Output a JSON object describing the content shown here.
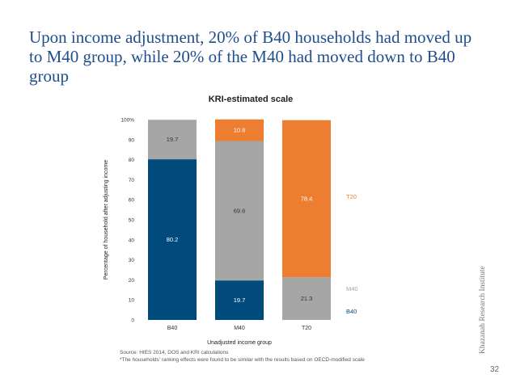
{
  "slide": {
    "title": "Upon income adjustment, 20% of B40 households had moved up to M40 group, while 20% of the M40 had moved down to B40 group",
    "source_line_1": "Source: HIES 2014, DOS and KRI calculations",
    "source_line_2": "*The households' ranking effects were found to be similar with the results based on OECD-modified scale",
    "brand": "Khazanah Research Institute",
    "page_number": "32"
  },
  "chart_data": {
    "type": "bar",
    "stacked": true,
    "title": "KRI-estimated scale",
    "xlabel": "Unadjusted income group",
    "ylabel": "Percentage of household after adjusting income",
    "categories": [
      "B40",
      "M40",
      "T20"
    ],
    "ylim": [
      0,
      100
    ],
    "yticks": [
      "0",
      "10",
      "20",
      "30",
      "40",
      "50",
      "60",
      "70",
      "80",
      "90",
      "100%"
    ],
    "grid": false,
    "legend_position": "right",
    "series": [
      {
        "name": "B40",
        "color": "#004a7c",
        "label_color": "#ffffff",
        "values": [
          80.2,
          19.7,
          0
        ],
        "labels": [
          "80.2",
          "19.7",
          ""
        ]
      },
      {
        "name": "M40",
        "color": "#a6a6a6",
        "label_color": "#333333",
        "values": [
          19.7,
          69.6,
          21.3
        ],
        "labels": [
          "19.7",
          "69.6",
          "21.3"
        ]
      },
      {
        "name": "T20",
        "color": "#ed7d31",
        "label_color": "#ffffff",
        "values": [
          0,
          10.8,
          78.4
        ],
        "labels": [
          "",
          "10.8",
          "78.4"
        ]
      }
    ],
    "legend": [
      {
        "name": "T20",
        "color": "#ed7d31"
      },
      {
        "name": "M40",
        "color": "#a6a6a6"
      },
      {
        "name": "B40",
        "color": "#004a7c"
      }
    ]
  }
}
